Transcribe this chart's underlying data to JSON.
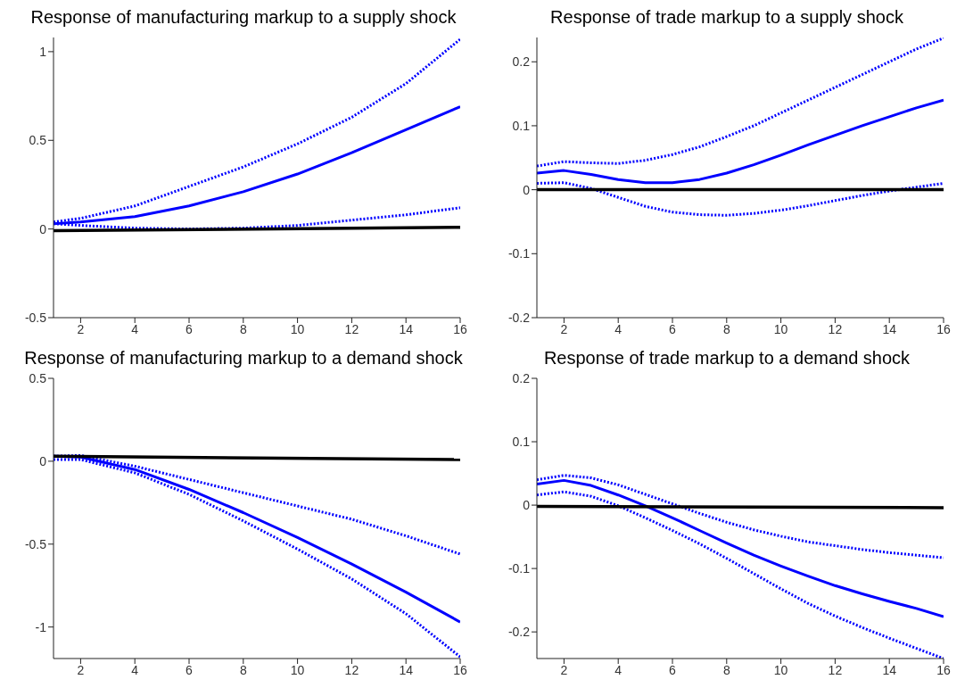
{
  "chart_data": [
    {
      "type": "line",
      "title": "Response of manufacturing markup to a supply shock",
      "xlim": [
        1,
        16
      ],
      "xticks": [
        2,
        4,
        6,
        8,
        10,
        12,
        14,
        16
      ],
      "ylim": [
        -0.5,
        1.08
      ],
      "yticks": [
        -0.5,
        0,
        0.5,
        1
      ],
      "grid": false,
      "legend": false,
      "marker": "none",
      "series": [
        {
          "color": "#0000ff",
          "line_style": "dotted",
          "x": [
            1,
            2,
            4,
            6,
            8,
            10,
            12,
            14,
            16
          ],
          "values": [
            0.04,
            0.06,
            0.13,
            0.24,
            0.35,
            0.48,
            0.63,
            0.82,
            1.07
          ]
        },
        {
          "color": "#0000ff",
          "line_style": "solid",
          "x": [
            1,
            2,
            4,
            6,
            8,
            10,
            12,
            14,
            16
          ],
          "values": [
            0.03,
            0.04,
            0.07,
            0.13,
            0.21,
            0.31,
            0.43,
            0.56,
            0.69
          ]
        },
        {
          "color": "#0000ff",
          "line_style": "dotted",
          "x": [
            1,
            2,
            4,
            6,
            8,
            10,
            12,
            14,
            16
          ],
          "values": [
            0.03,
            0.02,
            0.005,
            0.0,
            0.005,
            0.02,
            0.05,
            0.08,
            0.12
          ]
        },
        {
          "color": "#000000",
          "line_style": "solid",
          "x": [
            1,
            16
          ],
          "values": [
            -0.01,
            0.01
          ]
        }
      ]
    },
    {
      "type": "line",
      "title": "Response of trade markup to a supply shock",
      "xlim": [
        1,
        16
      ],
      "xticks": [
        2,
        4,
        6,
        8,
        10,
        12,
        14,
        16
      ],
      "ylim": [
        -0.2,
        0.238
      ],
      "yticks": [
        -0.2,
        -0.1,
        0,
        0.1,
        0.2
      ],
      "grid": false,
      "legend": false,
      "marker": "none",
      "series": [
        {
          "color": "#0000ff",
          "line_style": "dotted",
          "x": [
            1,
            2,
            3,
            4,
            5,
            6,
            7,
            8,
            9,
            10,
            11,
            12,
            13,
            14,
            15,
            16
          ],
          "values": [
            0.037,
            0.044,
            0.042,
            0.041,
            0.046,
            0.055,
            0.067,
            0.083,
            0.1,
            0.12,
            0.14,
            0.16,
            0.18,
            0.2,
            0.22,
            0.237
          ]
        },
        {
          "color": "#0000ff",
          "line_style": "solid",
          "x": [
            1,
            2,
            3,
            4,
            5,
            6,
            7,
            8,
            9,
            10,
            11,
            12,
            13,
            14,
            15,
            16
          ],
          "values": [
            0.026,
            0.03,
            0.024,
            0.016,
            0.011,
            0.011,
            0.016,
            0.026,
            0.039,
            0.054,
            0.07,
            0.085,
            0.1,
            0.114,
            0.128,
            0.14
          ]
        },
        {
          "color": "#0000ff",
          "line_style": "dotted",
          "x": [
            1,
            2,
            3,
            4,
            5,
            6,
            7,
            8,
            9,
            10,
            11,
            12,
            13,
            14,
            15,
            16
          ],
          "values": [
            0.01,
            0.011,
            0.002,
            -0.012,
            -0.026,
            -0.035,
            -0.039,
            -0.04,
            -0.037,
            -0.032,
            -0.025,
            -0.017,
            -0.009,
            -0.002,
            0.004,
            0.01
          ]
        },
        {
          "color": "#000000",
          "line_style": "solid",
          "x": [
            1,
            16
          ],
          "values": [
            0,
            0
          ]
        }
      ]
    },
    {
      "type": "line",
      "title": "Response of manufacturing markup to a demand shock",
      "xlim": [
        1,
        16
      ],
      "xticks": [
        2,
        4,
        6,
        8,
        10,
        12,
        14,
        16
      ],
      "ylim": [
        -1.19,
        0.5
      ],
      "yticks": [
        -1,
        -0.5,
        0,
        0.5
      ],
      "grid": false,
      "legend": false,
      "marker": "none",
      "series": [
        {
          "color": "#0000ff",
          "line_style": "dotted",
          "x": [
            1,
            2,
            4,
            6,
            8,
            10,
            12,
            14,
            16
          ],
          "values": [
            0.03,
            0.035,
            -0.03,
            -0.11,
            -0.19,
            -0.27,
            -0.35,
            -0.45,
            -0.56
          ]
        },
        {
          "color": "#0000ff",
          "line_style": "solid",
          "x": [
            1,
            2,
            4,
            6,
            8,
            10,
            12,
            14,
            16
          ],
          "values": [
            0.03,
            0.025,
            -0.05,
            -0.17,
            -0.31,
            -0.46,
            -0.62,
            -0.79,
            -0.97
          ]
        },
        {
          "color": "#0000ff",
          "line_style": "dotted",
          "x": [
            1,
            2,
            4,
            6,
            8,
            10,
            12,
            14,
            16
          ],
          "values": [
            0.01,
            0.01,
            -0.07,
            -0.2,
            -0.36,
            -0.53,
            -0.71,
            -0.92,
            -1.18
          ]
        },
        {
          "color": "#000000",
          "line_style": "solid",
          "x": [
            1,
            16
          ],
          "values": [
            0.03,
            0.01
          ]
        }
      ]
    },
    {
      "type": "line",
      "title": "Response of trade markup to a demand shock",
      "xlim": [
        1,
        16
      ],
      "xticks": [
        2,
        4,
        6,
        8,
        10,
        12,
        14,
        16
      ],
      "ylim": [
        -0.242,
        0.2
      ],
      "yticks": [
        -0.2,
        -0.1,
        0,
        0.1,
        0.2
      ],
      "grid": false,
      "legend": false,
      "marker": "none",
      "series": [
        {
          "color": "#0000ff",
          "line_style": "dotted",
          "x": [
            1,
            2,
            3,
            4,
            5,
            6,
            7,
            8,
            9,
            10,
            11,
            12,
            13,
            14,
            15,
            16
          ],
          "values": [
            0.04,
            0.047,
            0.043,
            0.032,
            0.017,
            0.002,
            -0.013,
            -0.027,
            -0.039,
            -0.049,
            -0.058,
            -0.064,
            -0.07,
            -0.075,
            -0.079,
            -0.083
          ]
        },
        {
          "color": "#0000ff",
          "line_style": "solid",
          "x": [
            1,
            2,
            3,
            4,
            5,
            6,
            7,
            8,
            9,
            10,
            11,
            12,
            13,
            14,
            15,
            16
          ],
          "values": [
            0.033,
            0.039,
            0.031,
            0.016,
            -0.001,
            -0.02,
            -0.04,
            -0.06,
            -0.079,
            -0.096,
            -0.112,
            -0.127,
            -0.14,
            -0.152,
            -0.163,
            -0.176
          ]
        },
        {
          "color": "#0000ff",
          "line_style": "dotted",
          "x": [
            1,
            2,
            3,
            4,
            5,
            6,
            7,
            8,
            9,
            10,
            11,
            12,
            13,
            14,
            15,
            16
          ],
          "values": [
            0.016,
            0.021,
            0.014,
            -0.001,
            -0.02,
            -0.04,
            -0.061,
            -0.084,
            -0.108,
            -0.132,
            -0.155,
            -0.175,
            -0.193,
            -0.21,
            -0.226,
            -0.242
          ]
        },
        {
          "color": "#000000",
          "line_style": "solid",
          "x": [
            1,
            16
          ],
          "values": [
            -0.002,
            -0.004
          ]
        }
      ]
    }
  ]
}
